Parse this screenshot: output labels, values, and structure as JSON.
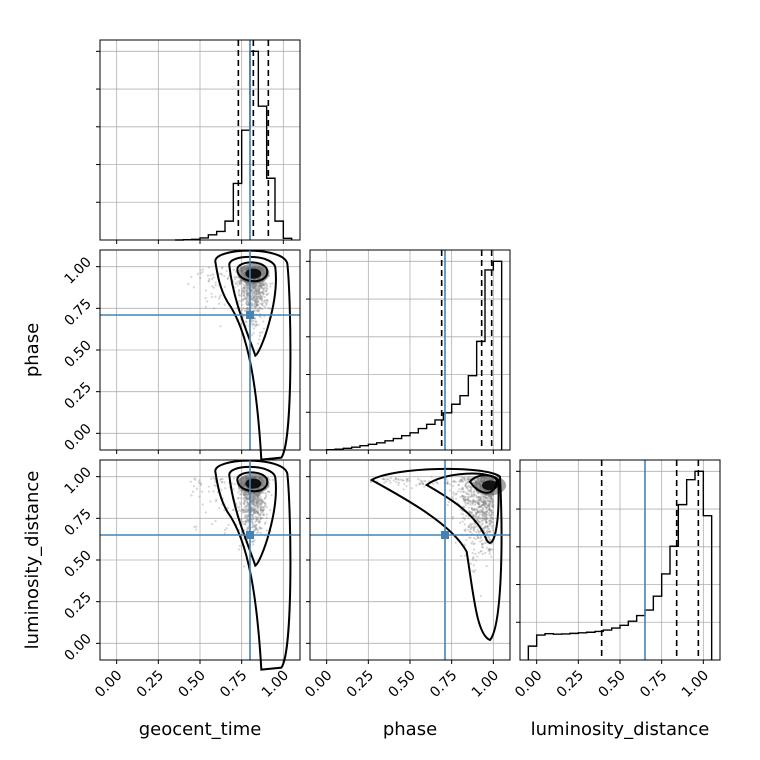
{
  "chart_data": {
    "type": "corner",
    "parameters": [
      "geocent_time",
      "phase",
      "luminosity_distance"
    ],
    "axis_range": [
      -0.1,
      1.1
    ],
    "tick_values": [
      0.0,
      0.25,
      0.5,
      0.75,
      1.0
    ],
    "tick_labels": [
      "0.00",
      "0.25",
      "0.50",
      "0.75",
      "1.00"
    ],
    "truths": {
      "geocent_time": 0.8,
      "phase": 0.71,
      "luminosity_distance": 0.65
    },
    "quantiles": {
      "geocent_time": [
        0.73,
        0.82,
        0.91
      ],
      "phase": [
        0.69,
        0.93,
        0.99
      ],
      "luminosity_distance": [
        0.39,
        0.84,
        0.97
      ]
    },
    "histograms": {
      "geocent_time": {
        "edges": [
          0.35,
          0.4,
          0.45,
          0.5,
          0.55,
          0.6,
          0.65,
          0.7,
          0.75,
          0.8,
          0.85,
          0.9,
          0.95,
          1.0,
          1.05
        ],
        "counts": [
          0,
          1,
          2,
          6,
          15,
          25,
          55,
          165,
          320,
          550,
          390,
          180,
          55,
          5
        ]
      },
      "phase": {
        "edges": [
          0.0,
          0.05,
          0.1,
          0.15,
          0.2,
          0.25,
          0.3,
          0.35,
          0.4,
          0.45,
          0.5,
          0.55,
          0.6,
          0.65,
          0.7,
          0.75,
          0.8,
          0.85,
          0.9,
          0.95,
          1.0,
          1.05
        ],
        "counts": [
          1,
          3,
          6,
          10,
          15,
          20,
          25,
          32,
          40,
          50,
          60,
          75,
          90,
          105,
          130,
          160,
          190,
          260,
          380,
          630,
          660
        ]
      },
      "luminosity_distance": {
        "edges": [
          -0.05,
          0.0,
          0.05,
          0.1,
          0.15,
          0.2,
          0.25,
          0.3,
          0.35,
          0.4,
          0.45,
          0.5,
          0.55,
          0.6,
          0.65,
          0.7,
          0.75,
          0.8,
          0.85,
          0.9,
          0.95,
          1.0,
          1.05
        ],
        "counts": [
          50,
          90,
          95,
          93,
          94,
          96,
          98,
          100,
          103,
          108,
          115,
          125,
          140,
          160,
          180,
          230,
          310,
          410,
          560,
          650,
          680,
          520
        ]
      }
    },
    "density_2d": {
      "phase_vs_geocent_time": {
        "peak_x": 0.82,
        "peak_y": 0.97,
        "points": 900
      },
      "luminosity_distance_vs_geocent_time": {
        "peak_x": 0.82,
        "peak_y": 0.97,
        "points": 900
      },
      "luminosity_distance_vs_phase": {
        "peak_x": 0.98,
        "peak_y": 0.96,
        "points": 900
      }
    },
    "colors": {
      "truth": "#4682b4",
      "hist": "#000000",
      "grid": "#b0b0b0",
      "scatter": "#888888"
    }
  }
}
